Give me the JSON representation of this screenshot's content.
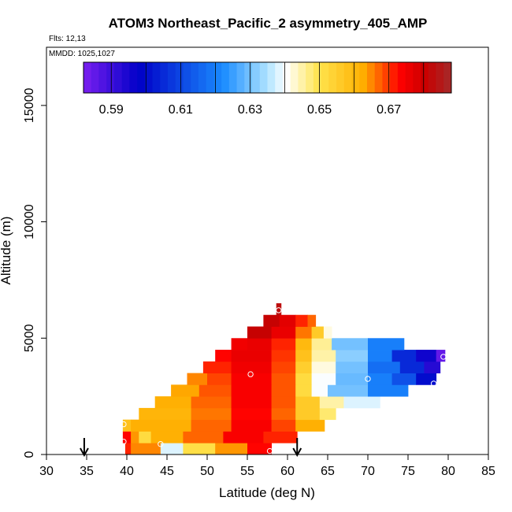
{
  "chart_data": {
    "type": "heatmap",
    "title": "ATOM3 Northeast_Pacific_2 asymmetry_405_AMP",
    "flights_label": "Flts: 12,13",
    "dates_label": "MMDD: 1025,1027",
    "xlabel": "Latitude (deg N)",
    "ylabel": "Altitude (m)",
    "xlim": [
      30,
      85
    ],
    "ylim": [
      0,
      17500
    ],
    "xticks": [
      30,
      35,
      40,
      45,
      50,
      55,
      60,
      65,
      70,
      75,
      80,
      85
    ],
    "yticks": [
      0,
      5000,
      10000,
      15000
    ],
    "colorbar": {
      "range": [
        0.582,
        0.688
      ],
      "tick_values": [
        0.59,
        0.61,
        0.63,
        0.65,
        0.67
      ],
      "tick_labels": [
        "0.59",
        "0.61",
        "0.63",
        "0.65",
        "0.67"
      ],
      "colors": [
        "#7a1ff0",
        "#0000c8",
        "#1a8cff",
        "#aee3ff",
        "#ffffff",
        "#ffe44d",
        "#ffae00",
        "#ff0000",
        "#c80000",
        "#a52a2a"
      ],
      "color_positions": [
        0.0,
        0.15,
        0.38,
        0.5,
        0.55,
        0.64,
        0.76,
        0.86,
        0.93,
        1.0
      ]
    },
    "row_height_m": 500,
    "rows": [
      {
        "alt": 250,
        "segs": [
          [
            39.8,
            40.5,
            0.671
          ],
          [
            40.5,
            44.2,
            0.665
          ],
          [
            44.2,
            47.0,
            0.638
          ],
          [
            47.0,
            51.0,
            0.651
          ],
          [
            51.0,
            55.0,
            0.664
          ],
          [
            55.0,
            58.0,
            0.673
          ]
        ]
      },
      {
        "alt": 750,
        "segs": [
          [
            39.5,
            40.5,
            0.673
          ],
          [
            40.5,
            41.5,
            0.664
          ],
          [
            41.5,
            43.0,
            0.652
          ],
          [
            43.0,
            47.0,
            0.662
          ],
          [
            47.0,
            52.0,
            0.667
          ],
          [
            52.0,
            57.0,
            0.674
          ],
          [
            57.0,
            61.2,
            0.671
          ]
        ]
      },
      {
        "alt": 1250,
        "segs": [
          [
            39.5,
            40.5,
            0.658
          ],
          [
            40.5,
            48.0,
            0.662
          ],
          [
            48.0,
            53.0,
            0.667
          ],
          [
            53.0,
            58.0,
            0.674
          ],
          [
            58.0,
            61.0,
            0.669
          ],
          [
            61.0,
            64.6,
            0.662
          ]
        ]
      },
      {
        "alt": 1750,
        "segs": [
          [
            41.5,
            48.0,
            0.661
          ],
          [
            48.0,
            53.0,
            0.666
          ],
          [
            53.0,
            58.0,
            0.673
          ],
          [
            58.0,
            61.0,
            0.667
          ],
          [
            61.0,
            64.0,
            0.656
          ],
          [
            64.0,
            66.0,
            0.648
          ]
        ]
      },
      {
        "alt": 2250,
        "segs": [
          [
            43.5,
            48.0,
            0.662
          ],
          [
            48.0,
            53.0,
            0.667
          ],
          [
            53.0,
            58.0,
            0.674
          ],
          [
            58.0,
            61.0,
            0.668
          ],
          [
            61.0,
            64.0,
            0.656
          ],
          [
            64.0,
            67.0,
            0.645
          ],
          [
            67.0,
            71.5,
            0.638
          ]
        ]
      },
      {
        "alt": 2750,
        "segs": [
          [
            45.5,
            49.0,
            0.663
          ],
          [
            49.0,
            53.0,
            0.668
          ],
          [
            53.0,
            58.0,
            0.674
          ],
          [
            58.0,
            61.0,
            0.668
          ],
          [
            61.0,
            63.0,
            0.652
          ],
          [
            63.0,
            65.0,
            0.64
          ],
          [
            65.0,
            70.0,
            0.63
          ],
          [
            70.0,
            75.0,
            0.62
          ]
        ]
      },
      {
        "alt": 3250,
        "segs": [
          [
            47.5,
            50.0,
            0.665
          ],
          [
            50.0,
            53.0,
            0.669
          ],
          [
            53.0,
            58.0,
            0.674
          ],
          [
            58.0,
            61.0,
            0.668
          ],
          [
            61.0,
            63.0,
            0.652
          ],
          [
            63.0,
            66.0,
            0.64
          ],
          [
            66.0,
            70.0,
            0.629
          ],
          [
            70.0,
            73.0,
            0.62
          ],
          [
            73.0,
            76.0,
            0.612
          ],
          [
            76.0,
            78.5,
            0.6
          ]
        ]
      },
      {
        "alt": 3750,
        "segs": [
          [
            49.5,
            53.0,
            0.671
          ],
          [
            53.0,
            58.0,
            0.675
          ],
          [
            58.0,
            61.0,
            0.669
          ],
          [
            61.0,
            63.0,
            0.655
          ],
          [
            63.0,
            66.0,
            0.642
          ],
          [
            66.0,
            70.0,
            0.63
          ],
          [
            70.0,
            74.0,
            0.617
          ],
          [
            74.0,
            77.0,
            0.605
          ],
          [
            77.0,
            79.0,
            0.593
          ]
        ]
      },
      {
        "alt": 4250,
        "segs": [
          [
            51.0,
            53.0,
            0.673
          ],
          [
            53.0,
            58.0,
            0.676
          ],
          [
            58.0,
            61.0,
            0.67
          ],
          [
            61.0,
            63.0,
            0.658
          ],
          [
            63.0,
            66.0,
            0.645
          ],
          [
            66.0,
            70.0,
            0.632
          ],
          [
            70.0,
            73.0,
            0.62
          ],
          [
            73.0,
            76.0,
            0.605
          ],
          [
            76.0,
            78.5,
            0.596
          ],
          [
            78.5,
            79.6,
            0.585
          ]
        ]
      },
      {
        "alt": 4750,
        "segs": [
          [
            53.0,
            55.0,
            0.675
          ],
          [
            55.0,
            58.0,
            0.676
          ],
          [
            58.0,
            61.0,
            0.671
          ],
          [
            61.0,
            63.0,
            0.66
          ],
          [
            63.0,
            65.5,
            0.646
          ],
          [
            65.5,
            70.0,
            0.63
          ],
          [
            70.0,
            74.5,
            0.62
          ]
        ]
      },
      {
        "alt": 5250,
        "segs": [
          [
            55.0,
            58.0,
            0.681
          ],
          [
            58.0,
            61.0,
            0.676
          ],
          [
            61.0,
            63.0,
            0.666
          ],
          [
            63.0,
            64.5,
            0.656
          ],
          [
            64.5,
            65.5,
            0.642
          ]
        ]
      },
      {
        "alt": 5750,
        "segs": [
          [
            57.0,
            59.0,
            0.681
          ],
          [
            59.0,
            61.0,
            0.677
          ],
          [
            61.0,
            62.5,
            0.671
          ],
          [
            62.5,
            63.5,
            0.667
          ]
        ]
      },
      {
        "alt": 6250,
        "segs": [
          [
            58.6,
            59.2,
            0.683
          ]
        ]
      }
    ],
    "sample_points": [
      {
        "lat": 39.6,
        "alt": 550,
        "value": 0.66
      },
      {
        "lat": 39.6,
        "alt": 1300,
        "value": 0.658
      },
      {
        "lat": 44.2,
        "alt": 450,
        "value": 0.638
      },
      {
        "lat": 55.4,
        "alt": 3450,
        "value": 0.668
      },
      {
        "lat": 57.8,
        "alt": 150,
        "value": 0.671
      },
      {
        "lat": 58.9,
        "alt": 6200,
        "value": 0.683
      },
      {
        "lat": 70.0,
        "alt": 3250,
        "value": 0.63
      },
      {
        "lat": 78.2,
        "alt": 3050,
        "value": 0.598
      },
      {
        "lat": 79.4,
        "alt": 4200,
        "value": 0.585
      }
    ],
    "arrows": [
      34.7,
      61.2
    ]
  }
}
